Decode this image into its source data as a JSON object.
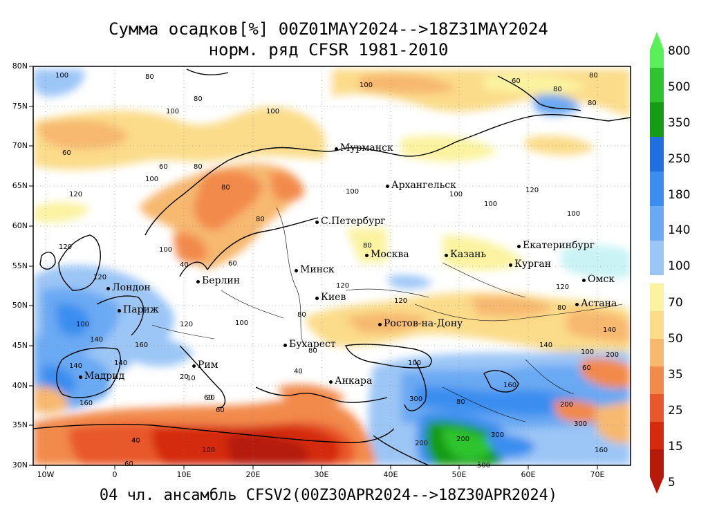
{
  "header": {
    "title_line1": "Сумма осадков[%] 00Z01MAY2024-->18Z31MAY2024",
    "title_line2": "норм. ряд CFSR 1981-2010"
  },
  "footer": {
    "text": "04 чл. ансамбль CFSV2(00Z30APR2024-->18Z30APR2024)"
  },
  "axes": {
    "y_ticks": [
      "80N",
      "75N",
      "70N",
      "65N",
      "60N",
      "55N",
      "50N",
      "45N",
      "40N",
      "35N",
      "30N"
    ],
    "x_ticks": [
      "10W",
      "0",
      "10E",
      "20E",
      "30E",
      "40E",
      "50E",
      "60E",
      "70E"
    ]
  },
  "colorbar": {
    "labels": [
      "800",
      "500",
      "350",
      "250",
      "180",
      "140",
      "100",
      "70",
      "50",
      "35",
      "25",
      "15",
      "5"
    ],
    "colors": [
      "#5af05a",
      "#2fc42f",
      "#159b15",
      "#1f6fe0",
      "#3b8ef0",
      "#6aa9f3",
      "#9cc6f6",
      "#c9f3f5",
      "#fbf3a0",
      "#fbdc8a",
      "#f7b870",
      "#f28a4c",
      "#e8582c",
      "#d42b0f",
      "#b51a0a"
    ]
  },
  "cities": [
    {
      "name": "Мурманск"
    },
    {
      "name": "Архангельск"
    },
    {
      "name": "С.Петербург"
    },
    {
      "name": "Москва"
    },
    {
      "name": "Казань"
    },
    {
      "name": "Екатеринбург"
    },
    {
      "name": "Курган"
    },
    {
      "name": "Омск"
    },
    {
      "name": "Астана"
    },
    {
      "name": "Минск"
    },
    {
      "name": "Берлин"
    },
    {
      "name": "Лондон"
    },
    {
      "name": "Париж"
    },
    {
      "name": "Киев"
    },
    {
      "name": "Ростов-на-Дону"
    },
    {
      "name": "Бухарест"
    },
    {
      "name": "Рим"
    },
    {
      "name": "Мадрид"
    },
    {
      "name": "Анкара"
    }
  ],
  "contour_labels": [
    "100",
    "80",
    "100",
    "60",
    "80",
    "80",
    "100",
    "100",
    "80",
    "80",
    "60",
    "60",
    "80",
    "80",
    "100",
    "100",
    "120",
    "100",
    "120",
    "100",
    "80",
    "60",
    "40",
    "100",
    "120",
    "120",
    "100",
    "140",
    "160",
    "160",
    "140",
    "140",
    "120",
    "100",
    "80",
    "60",
    "40",
    "20",
    "40",
    "100",
    "80",
    "120",
    "160",
    "200",
    "300",
    "500",
    "300",
    "200",
    "80",
    "100",
    "140",
    "200",
    "300",
    "160",
    "60",
    "80",
    "120",
    "100",
    "140",
    "200",
    "120",
    "80",
    "100",
    "10",
    "20",
    "60",
    "40",
    "60"
  ]
}
